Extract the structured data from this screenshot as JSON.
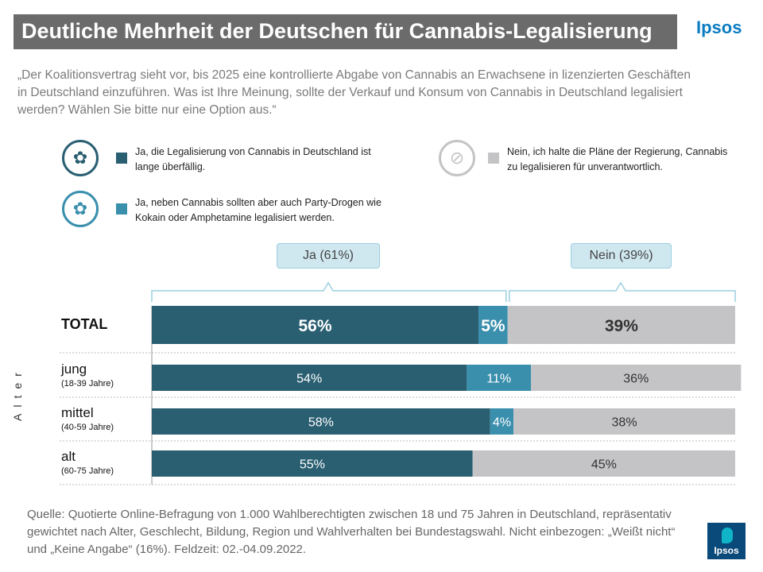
{
  "title": "Deutliche Mehrheit der Deutschen für Cannabis-Legalisierung",
  "brand": "Ipsos",
  "question": "„Der Koalitionsvertrag sieht vor, bis 2025 eine kontrollierte Abgabe von Cannabis an Erwachsene in lizenzierten Geschäften in Deutschland einzuführen. Was ist Ihre Meinung, sollte der Verkauf und Konsum von Cannabis in Deutschland legalisiert werden? Wählen Sie bitte nur eine Option aus.“",
  "legend": [
    {
      "text": "Ja, die Legalisierung von Cannabis in Deutschland ist lange überfällig.",
      "color": "#2a5f72",
      "icon": "cannabis-hand-icon"
    },
    {
      "text": "Ja, neben Cannabis sollten aber auch Party-Drogen wie Kokain oder Amphetamine legalisiert werden.",
      "color": "#3a8fad",
      "icon": "cannabis-pill-icon"
    },
    {
      "text": "Nein, ich halte die Pläne der Regierung, Cannabis zu legalisieren für unverantwortlich.",
      "color": "#c4c4c6",
      "icon": "no-cannabis-icon"
    }
  ],
  "callouts": {
    "ja": "Ja (61%)",
    "nein": "Nein (39%)"
  },
  "age_axis_label": "Alter",
  "source": "Quelle: Quotierte Online-Befragung von 1.000 Wahlberechtigten zwischen 18 und 75 Jahren in Deutschland, repräsentativ gewichtet nach Alter, Geschlecht, Bildung, Region und Wahlverhalten bei Bundestagswahl. Nicht einbezogen: „Weißt nicht“ und „Keine Angabe“ (16%). Feldzeit: 02.-04.09.2022.",
  "logo_text": "Ipsos",
  "chart_data": {
    "type": "bar",
    "orientation": "horizontal",
    "stacked": true,
    "categories": [
      "TOTAL",
      "jung",
      "mittel",
      "alt"
    ],
    "category_sublabels": [
      "",
      "(18-39 Jahre)",
      "(40-59 Jahre)",
      "(60-75 Jahre)"
    ],
    "series": [
      {
        "name": "Ja, die Legalisierung von Cannabis in Deutschland ist lange überfällig.",
        "values": [
          56,
          54,
          58,
          55
        ],
        "labels": [
          "56%",
          "54%",
          "58%",
          "55%"
        ],
        "color": "#2a5f72"
      },
      {
        "name": "Ja, neben Cannabis sollten aber auch Party-Drogen wie Kokain oder Amphetamine legalisiert werden.",
        "values": [
          5,
          11,
          4,
          0
        ],
        "labels": [
          "5%",
          "11%",
          "4%",
          ""
        ],
        "color": "#3a8fad"
      },
      {
        "name": "Nein, ich halte die Pläne der Regierung, Cannabis zu legalisieren für unverantwortlich.",
        "values": [
          39,
          36,
          38,
          45
        ],
        "labels": [
          "39%",
          "36%",
          "38%",
          "45%"
        ],
        "color": "#c4c4c6"
      }
    ],
    "xlim": [
      0,
      100
    ],
    "grid": false
  }
}
